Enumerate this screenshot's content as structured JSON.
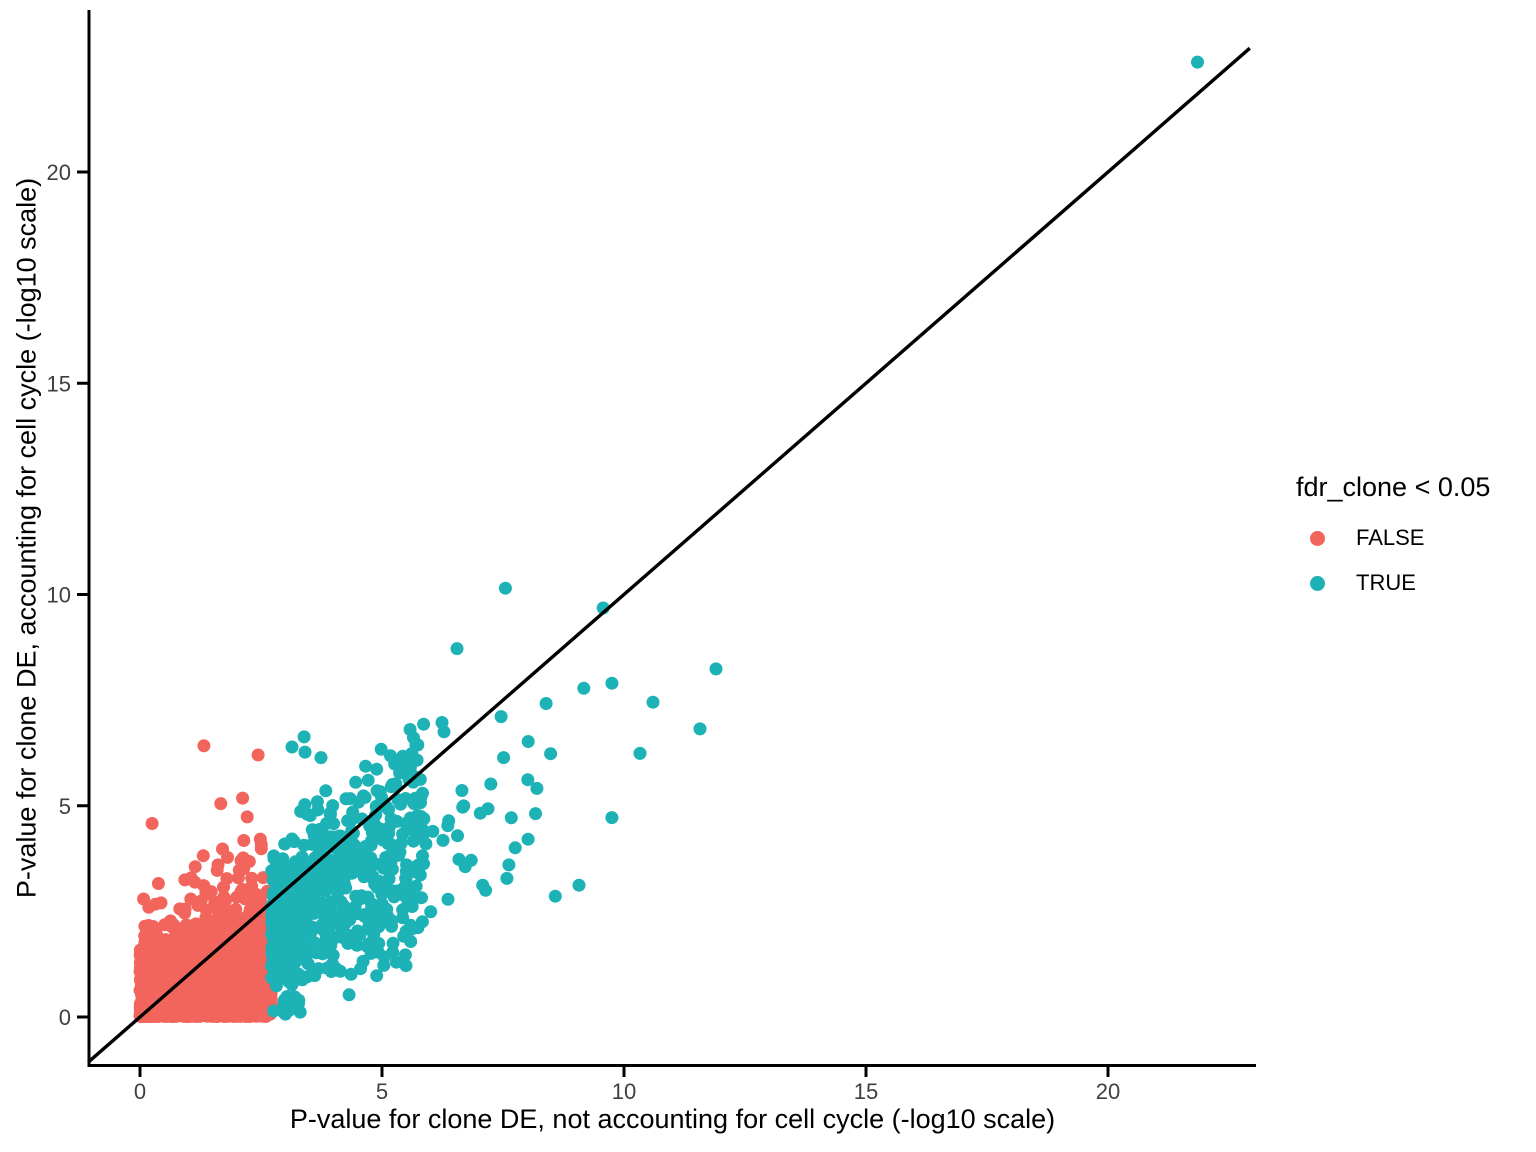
{
  "figure": {
    "background": "#ffffff",
    "text_color": "#000000",
    "tick_label_color": "#3f3f3f",
    "axis_line_color": "#000000"
  },
  "legend": {
    "title": "fdr_clone < 0.05",
    "position": "right",
    "entries": [
      {
        "label": "FALSE",
        "color": "#f2655d"
      },
      {
        "label": "TRUE",
        "color": "#1cb2b6"
      }
    ]
  },
  "chart_data": {
    "type": "scatter",
    "title": "",
    "xlabel": "P-value for clone DE, not accounting for cell cycle (-log10 scale)",
    "ylabel": "P-value for clone DE, accounting for cell cycle (-log10 scale)",
    "xlim": [
      -1.05,
      23.06
    ],
    "ylim": [
      -1.15,
      23.83
    ],
    "xticks": [
      0,
      5,
      10,
      15,
      20
    ],
    "yticks": [
      0,
      5,
      10,
      15,
      20
    ],
    "grid": false,
    "legend_position": "right",
    "reference_line": {
      "type": "identity",
      "from": -1.07,
      "to": 22.93
    },
    "marker_radius": 6.5,
    "seed": 20,
    "series": [
      {
        "name": "FALSE",
        "color": "#f2655d",
        "points": [
          [
            1.32,
            6.42
          ],
          [
            2.44,
            6.2
          ],
          [
            0.25,
            4.58
          ],
          [
            1.67,
            5.05
          ],
          [
            2.12,
            5.18
          ]
        ],
        "dense_cluster": {
          "n": 2200,
          "x_range": [
            0,
            2.72
          ],
          "low_x_boost": 0.12,
          "y_exponential_scale": [
            0.42,
            0.33
          ],
          "spray_fraction": 0.2,
          "spray_lift": [
            2.0,
            0.95
          ],
          "envelope": [
            2.9,
            0.85
          ],
          "y_floor": 0.015
        }
      },
      {
        "name": "TRUE",
        "color": "#1cb2b6",
        "points": [
          [
            21.85,
            22.6
          ],
          [
            7.55,
            10.15
          ],
          [
            9.57,
            9.68
          ],
          [
            6.55,
            8.72
          ],
          [
            11.9,
            8.24
          ],
          [
            9.75,
            7.9
          ],
          [
            9.17,
            7.78
          ],
          [
            8.39,
            7.42
          ],
          [
            10.6,
            7.45
          ],
          [
            11.57,
            6.82
          ],
          [
            10.33,
            6.24
          ],
          [
            8.02,
            6.52
          ],
          [
            7.46,
            7.11
          ],
          [
            6.24,
            6.97
          ],
          [
            6.28,
            6.75
          ],
          [
            5.74,
            6.44
          ],
          [
            8.2,
            5.41
          ],
          [
            9.75,
            4.72
          ],
          [
            9.07,
            3.12
          ],
          [
            8.58,
            2.86
          ],
          [
            7.58,
            3.28
          ],
          [
            7.08,
            3.12
          ],
          [
            7.14,
            3.0
          ],
          [
            6.59,
            3.73
          ],
          [
            6.36,
            4.53
          ],
          [
            6.26,
            4.18
          ],
          [
            6.65,
            5.36
          ],
          [
            7.19,
            4.93
          ],
          [
            3.39,
            6.63
          ],
          [
            3.14,
            6.39
          ],
          [
            3.41,
            6.27
          ],
          [
            3.74,
            6.14
          ]
        ],
        "dense_cluster": {
          "n": 640,
          "x_start": 2.72,
          "x_span": 3.15,
          "x_skew": 1.6,
          "slope_range": [
            0.14,
            1.24
          ],
          "jitter": 0.45,
          "fringe_fraction": 0.07,
          "fringe_lift": 1.3,
          "y_max": 7.2,
          "y_floor": 0.03
        },
        "bridge_cluster": {
          "n": 22,
          "x_range": [
            5.7,
            8.7
          ],
          "slope_range": [
            0.42,
            0.38
          ],
          "jitter": 0.8,
          "y_range": [
            1.2,
            7.4
          ]
        },
        "carpet_cluster": {
          "n": 16,
          "x_range": [
            2.75,
            3.35
          ],
          "y_range": [
            0.03,
            0.5
          ]
        }
      }
    ]
  }
}
